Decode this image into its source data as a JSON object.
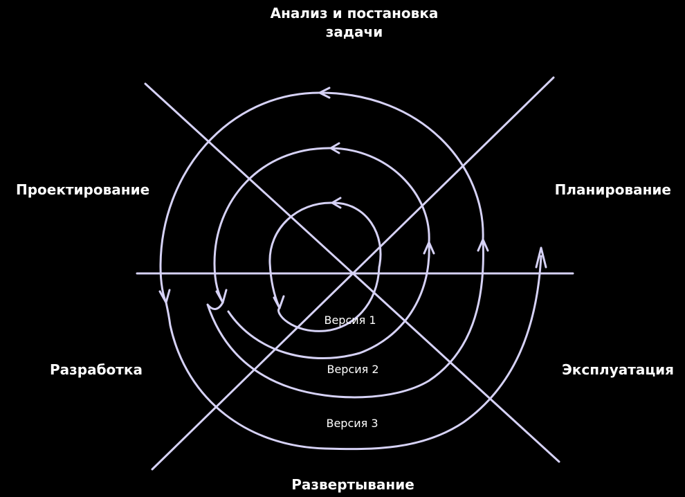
{
  "stages": {
    "top": "Анализ и постановка\nзадачи",
    "upper_left": "Проектирование",
    "upper_right": "Планирование",
    "lower_left": "Разработка",
    "lower_right": "Эксплуатация",
    "bottom": "Развертывание"
  },
  "versions": [
    "Версия 1",
    "Версия 2",
    "Версия 3"
  ],
  "colors": {
    "background": "#000000",
    "lines": "#d6d2f6",
    "text": "#ffffff"
  }
}
